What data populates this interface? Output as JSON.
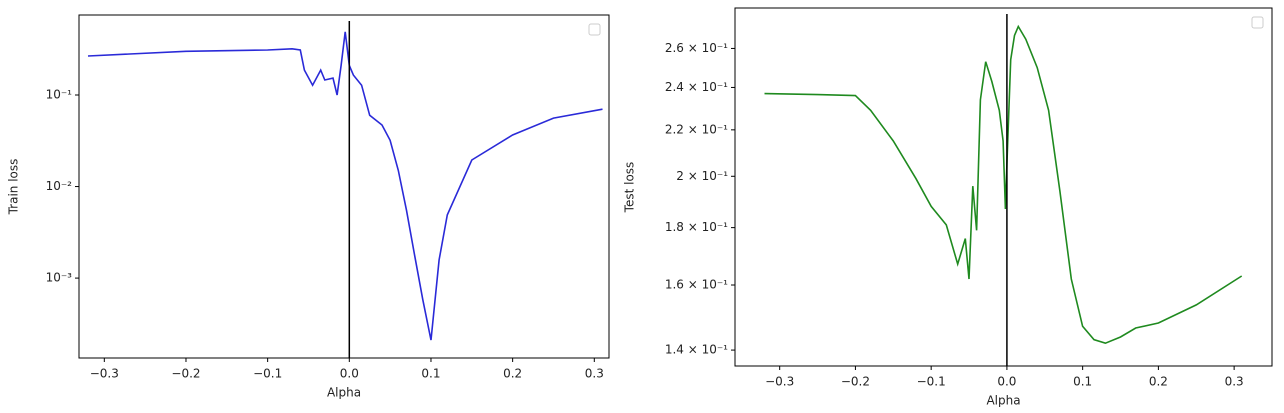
{
  "chart_data": [
    {
      "type": "line",
      "x_label": "Alpha",
      "y_label": "Train loss",
      "log_y": true,
      "color": "#2a2ad8",
      "vline": 0,
      "x": [
        -0.32,
        -0.2,
        -0.1,
        -0.07,
        -0.06,
        -0.055,
        -0.045,
        -0.035,
        -0.03,
        -0.02,
        -0.015,
        -0.01,
        -0.005,
        0.0,
        0.005,
        0.015,
        0.025,
        0.04,
        0.05,
        0.06,
        0.07,
        0.08,
        0.09,
        0.1,
        0.11,
        0.12,
        0.15,
        0.2,
        0.25,
        0.31
      ],
      "values": [
        0.267,
        0.3,
        0.31,
        0.32,
        0.31,
        0.187,
        0.128,
        0.187,
        0.146,
        0.153,
        0.1,
        0.21,
        0.49,
        0.21,
        0.165,
        0.128,
        0.06,
        0.047,
        0.032,
        0.015,
        0.0055,
        0.00178,
        0.00058,
        0.00021,
        0.00158,
        0.0049,
        0.0195,
        0.0366,
        0.056,
        0.07
      ],
      "xlim": [
        -0.331,
        0.318
      ],
      "ylim": [
        0.000134,
        0.748
      ],
      "xticks": [
        {
          "value": -0.3,
          "label": "−0.3"
        },
        {
          "value": -0.2,
          "label": "−0.2"
        },
        {
          "value": -0.1,
          "label": "−0.1"
        },
        {
          "value": 0,
          "label": "0.0"
        },
        0.1,
        0.2,
        0.3
      ],
      "yticks": [
        {
          "value": 0.001,
          "label": "10⁻³"
        },
        {
          "value": 0.01,
          "label": "10⁻²"
        },
        {
          "value": 0.1,
          "label": "10⁻¹"
        }
      ]
    },
    {
      "type": "line",
      "x_label": "Alpha",
      "y_label": "Test  loss",
      "log_y": true,
      "color": "#1f8a1f",
      "vline": 0,
      "x": [
        -0.32,
        -0.25,
        -0.2,
        -0.18,
        -0.15,
        -0.12,
        -0.1,
        -0.08,
        -0.065,
        -0.055,
        -0.05,
        -0.045,
        -0.04,
        -0.035,
        -0.028,
        -0.02,
        -0.01,
        -0.005,
        -0.002,
        0.0,
        0.005,
        0.01,
        0.015,
        0.025,
        0.04,
        0.055,
        0.07,
        0.085,
        0.1,
        0.115,
        0.13,
        0.15,
        0.17,
        0.2,
        0.25,
        0.31
      ],
      "values": [
        0.237,
        0.2365,
        0.236,
        0.229,
        0.215,
        0.199,
        0.188,
        0.181,
        0.167,
        0.176,
        0.162,
        0.196,
        0.179,
        0.234,
        0.253,
        0.243,
        0.229,
        0.215,
        0.187,
        0.205,
        0.254,
        0.267,
        0.272,
        0.265,
        0.25,
        0.229,
        0.194,
        0.162,
        0.147,
        0.143,
        0.142,
        0.1438,
        0.1465,
        0.148,
        0.1536,
        0.163
      ],
      "xlim": [
        -0.359,
        0.35
      ],
      "ylim": [
        0.1355,
        0.2825
      ],
      "xticks": [
        {
          "value": -0.3,
          "label": "−0.3"
        },
        {
          "value": -0.2,
          "label": "−0.2"
        },
        {
          "value": -0.1,
          "label": "−0.1"
        },
        {
          "value": 0,
          "label": "0.0"
        },
        0.1,
        0.2,
        0.3
      ],
      "yticks": [
        {
          "value": 0.14,
          "label": "1.4 × 10⁻¹"
        },
        {
          "value": 0.16,
          "label": "1.6 × 10⁻¹"
        },
        {
          "value": 0.18,
          "label": "1.8 × 10⁻¹"
        },
        {
          "value": 0.2,
          "label": "2 × 10⁻¹"
        },
        {
          "value": 0.22,
          "label": "2.2 × 10⁻¹"
        },
        {
          "value": 0.24,
          "label": "2.4 × 10⁻¹"
        },
        {
          "value": 0.26,
          "label": "2.6 × 10⁻¹"
        }
      ]
    }
  ]
}
